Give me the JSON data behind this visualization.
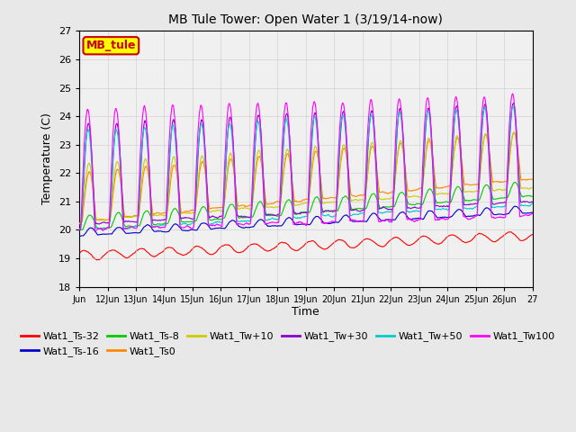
{
  "title": "MB Tule Tower: Open Water 1 (3/19/14-now)",
  "xlabel": "Time",
  "ylabel": "Temperature (C)",
  "ylim": [
    18.0,
    27.0
  ],
  "yticks": [
    18.0,
    19.0,
    20.0,
    21.0,
    22.0,
    23.0,
    24.0,
    25.0,
    26.0,
    27.0
  ],
  "bg_color": "#e8e8e8",
  "plot_bg_color": "#f0f0f0",
  "legend_label": "MB_tule",
  "legend_box_color": "#ffff00",
  "legend_box_border": "#cc0000",
  "series_colors": {
    "Wat1_Ts-32": "#ff0000",
    "Wat1_Ts-16": "#0000cc",
    "Wat1_Ts-8": "#00cc00",
    "Wat1_Ts0": "#ff8800",
    "Wat1_Tw+10": "#cccc00",
    "Wat1_Tw+30": "#8800cc",
    "Wat1_Tw+50": "#00cccc",
    "Wat1_Tw100": "#ff00ff"
  },
  "x_tick_labels": [
    "Jun",
    "12Jun",
    "13Jun",
    "14Jun",
    "15Jun",
    "16Jun",
    "17Jun",
    "18Jun",
    "19Jun",
    "20Jun",
    "21Jun",
    "22Jun",
    "23Jun",
    "24Jun",
    "25Jun",
    "26Jun",
    "27"
  ],
  "num_days": 16,
  "num_points": 960
}
